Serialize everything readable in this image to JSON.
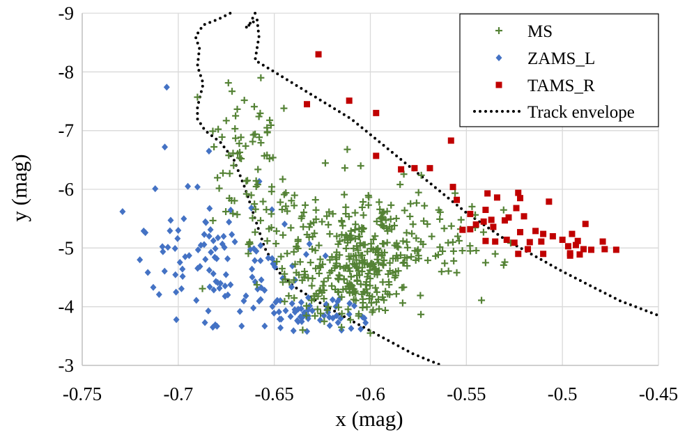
{
  "chart_data": {
    "type": "scatter",
    "xlabel": "x (mag)",
    "ylabel": "y (mag)",
    "xlim": [
      -0.75,
      -0.45
    ],
    "ylim": [
      -3,
      -9
    ],
    "x_ticks": [
      -0.75,
      -0.7,
      -0.65,
      -0.6,
      -0.55,
      -0.5,
      -0.45
    ],
    "x_tick_labels": [
      "-0.75",
      "-0.7",
      "-0.65",
      "-0.6",
      "-0.55",
      "-0.5",
      "-0.45"
    ],
    "y_ticks": [
      -3,
      -4,
      -5,
      -6,
      -7,
      -8,
      -9
    ],
    "y_tick_labels": [
      "-3",
      "-4",
      "-5",
      "-6",
      "-7",
      "-8",
      "-9"
    ],
    "grid": true,
    "legend_position": "top-right",
    "colors": {
      "MS": "#548235",
      "ZAMS_L": "#4472C4",
      "TAMS_R": "#C00000",
      "envelope": "#000000",
      "grid": "#D9D9D9",
      "axis": "#000000"
    },
    "series": [
      {
        "name": "MS",
        "marker": "plus",
        "generated": {
          "count": 480,
          "seed": 7,
          "clusters": [
            {
              "weight": 0.55,
              "cx": -0.605,
              "cy": -4.6,
              "sx": 0.018,
              "sy": 0.45,
              "corr": -0.35
            },
            {
              "weight": 0.25,
              "cx": -0.625,
              "cy": -5.4,
              "sx": 0.022,
              "sy": 0.45,
              "corr": -0.2
            },
            {
              "weight": 0.1,
              "cx": -0.665,
              "cy": -6.5,
              "sx": 0.01,
              "sy": 0.5,
              "corr": 0.0
            },
            {
              "weight": 0.1,
              "cx": -0.565,
              "cy": -5.2,
              "sx": 0.02,
              "sy": 0.35,
              "corr": 0.0
            }
          ],
          "bounds": {
            "xmin": -0.69,
            "xmax": -0.525,
            "ymin": -3.55,
            "ymax": -7.9
          }
        },
        "values": [
          {
            "x": -0.69,
            "y": -7.57
          },
          {
            "x": -0.672,
            "y": -7.67
          },
          {
            "x": -0.657,
            "y": -7.9
          },
          {
            "x": -0.645,
            "y": -7.38
          },
          {
            "x": -0.658,
            "y": -7.24
          },
          {
            "x": -0.675,
            "y": -7.17
          },
          {
            "x": -0.682,
            "y": -6.99
          },
          {
            "x": -0.66,
            "y": -6.94
          },
          {
            "x": -0.668,
            "y": -6.63
          },
          {
            "x": -0.664,
            "y": -6.15
          },
          {
            "x": -0.662,
            "y": -5.9
          },
          {
            "x": -0.612,
            "y": -6.68
          },
          {
            "x": -0.605,
            "y": -6.4
          },
          {
            "x": -0.548,
            "y": -4.95
          },
          {
            "x": -0.535,
            "y": -4.9
          },
          {
            "x": -0.53,
            "y": -4.76
          },
          {
            "x": -0.54,
            "y": -4.75
          },
          {
            "x": -0.555,
            "y": -4.58
          },
          {
            "x": -0.6,
            "y": -3.55
          },
          {
            "x": -0.615,
            "y": -3.65
          }
        ]
      },
      {
        "name": "ZAMS_L",
        "marker": "diamond",
        "generated": {
          "count": 150,
          "seed": 11,
          "clusters": [
            {
              "weight": 0.45,
              "cx": -0.66,
              "cy": -4.4,
              "sx": 0.025,
              "sy": 0.45,
              "corr": 0.0
            },
            {
              "weight": 0.3,
              "cx": -0.69,
              "cy": -4.9,
              "sx": 0.02,
              "sy": 0.5,
              "corr": 0.0
            },
            {
              "weight": 0.25,
              "cx": -0.63,
              "cy": -3.85,
              "sx": 0.018,
              "sy": 0.18,
              "corr": 0.0
            }
          ],
          "bounds": {
            "xmin": -0.72,
            "xmax": -0.6,
            "ymin": -3.6,
            "ymax": -6.8
          }
        },
        "values": [
          {
            "x": -0.729,
            "y": -5.62
          },
          {
            "x": -0.718,
            "y": -5.29
          },
          {
            "x": -0.72,
            "y": -4.8
          },
          {
            "x": -0.713,
            "y": -4.33
          },
          {
            "x": -0.712,
            "y": -6.01
          },
          {
            "x": -0.707,
            "y": -6.72
          },
          {
            "x": -0.706,
            "y": -7.74
          },
          {
            "x": -0.701,
            "y": -3.78
          },
          {
            "x": -0.695,
            "y": -6.05
          },
          {
            "x": -0.69,
            "y": -6.04
          },
          {
            "x": -0.684,
            "y": -6.65
          },
          {
            "x": -0.682,
            "y": -3.65
          },
          {
            "x": -0.667,
            "y": -3.67
          },
          {
            "x": -0.655,
            "y": -3.67
          },
          {
            "x": -0.64,
            "y": -3.59
          },
          {
            "x": -0.633,
            "y": -3.58
          },
          {
            "x": -0.615,
            "y": -3.6
          },
          {
            "x": -0.61,
            "y": -3.63
          },
          {
            "x": -0.605,
            "y": -3.62
          },
          {
            "x": -0.7,
            "y": -5.3
          }
        ]
      },
      {
        "name": "TAMS_R",
        "marker": "square",
        "values": [
          {
            "x": -0.627,
            "y": -8.3
          },
          {
            "x": -0.611,
            "y": -7.51
          },
          {
            "x": -0.633,
            "y": -7.45
          },
          {
            "x": -0.597,
            "y": -7.3
          },
          {
            "x": -0.558,
            "y": -6.83
          },
          {
            "x": -0.597,
            "y": -6.57
          },
          {
            "x": -0.584,
            "y": -6.34
          },
          {
            "x": -0.577,
            "y": -6.36
          },
          {
            "x": -0.569,
            "y": -6.36
          },
          {
            "x": -0.557,
            "y": -6.04
          },
          {
            "x": -0.539,
            "y": -5.93
          },
          {
            "x": -0.523,
            "y": -5.94
          },
          {
            "x": -0.534,
            "y": -5.86
          },
          {
            "x": -0.522,
            "y": -5.85
          },
          {
            "x": -0.555,
            "y": -5.82
          },
          {
            "x": -0.507,
            "y": -5.79
          },
          {
            "x": -0.524,
            "y": -5.68
          },
          {
            "x": -0.54,
            "y": -5.65
          },
          {
            "x": -0.548,
            "y": -5.58
          },
          {
            "x": -0.528,
            "y": -5.52
          },
          {
            "x": -0.52,
            "y": -5.54
          },
          {
            "x": -0.537,
            "y": -5.48
          },
          {
            "x": -0.541,
            "y": -5.45
          },
          {
            "x": -0.53,
            "y": -5.47
          },
          {
            "x": -0.545,
            "y": -5.4
          },
          {
            "x": -0.488,
            "y": -5.41
          },
          {
            "x": -0.536,
            "y": -5.36
          },
          {
            "x": -0.548,
            "y": -5.32
          },
          {
            "x": -0.552,
            "y": -5.31
          },
          {
            "x": -0.514,
            "y": -5.29
          },
          {
            "x": -0.51,
            "y": -5.24
          },
          {
            "x": -0.522,
            "y": -5.27
          },
          {
            "x": -0.495,
            "y": -5.24
          },
          {
            "x": -0.505,
            "y": -5.2
          },
          {
            "x": -0.5,
            "y": -5.14
          },
          {
            "x": -0.511,
            "y": -5.11
          },
          {
            "x": -0.517,
            "y": -5.1
          },
          {
            "x": -0.529,
            "y": -5.14
          },
          {
            "x": -0.535,
            "y": -5.11
          },
          {
            "x": -0.54,
            "y": -5.12
          },
          {
            "x": -0.525,
            "y": -5.09
          },
          {
            "x": -0.492,
            "y": -5.12
          },
          {
            "x": -0.497,
            "y": -5.03
          },
          {
            "x": -0.493,
            "y": -5.05
          },
          {
            "x": -0.489,
            "y": -4.98
          },
          {
            "x": -0.479,
            "y": -5.11
          },
          {
            "x": -0.478,
            "y": -4.98
          },
          {
            "x": -0.485,
            "y": -4.97
          },
          {
            "x": -0.472,
            "y": -4.97
          },
          {
            "x": -0.496,
            "y": -4.91
          },
          {
            "x": -0.491,
            "y": -4.89
          },
          {
            "x": -0.496,
            "y": -4.87
          },
          {
            "x": -0.51,
            "y": -4.9
          },
          {
            "x": -0.523,
            "y": -4.9
          },
          {
            "x": -0.518,
            "y": -4.98
          }
        ]
      }
    ],
    "envelope": {
      "name": "Track envelope",
      "inner_path": [
        {
          "x": -0.673,
          "y": -9.0
        },
        {
          "x": -0.679,
          "y": -8.9
        },
        {
          "x": -0.687,
          "y": -8.8
        },
        {
          "x": -0.691,
          "y": -8.6
        },
        {
          "x": -0.689,
          "y": -8.4
        },
        {
          "x": -0.69,
          "y": -8.1
        },
        {
          "x": -0.687,
          "y": -7.8
        },
        {
          "x": -0.69,
          "y": -7.4
        },
        {
          "x": -0.69,
          "y": -7.2
        },
        {
          "x": -0.686,
          "y": -7.0
        },
        {
          "x": -0.678,
          "y": -6.8
        },
        {
          "x": -0.671,
          "y": -6.5
        },
        {
          "x": -0.665,
          "y": -6.0
        },
        {
          "x": -0.66,
          "y": -5.5
        },
        {
          "x": -0.655,
          "y": -5.0
        },
        {
          "x": -0.648,
          "y": -4.6
        },
        {
          "x": -0.64,
          "y": -4.35
        },
        {
          "x": -0.628,
          "y": -4.1
        },
        {
          "x": -0.612,
          "y": -3.8
        },
        {
          "x": -0.595,
          "y": -3.5
        },
        {
          "x": -0.578,
          "y": -3.2
        },
        {
          "x": -0.563,
          "y": -3.0
        }
      ],
      "outer_path": [
        {
          "x": -0.66,
          "y": -9.0
        },
        {
          "x": -0.663,
          "y": -8.8
        },
        {
          "x": -0.665,
          "y": -8.75
        },
        {
          "x": -0.663,
          "y": -8.8
        },
        {
          "x": -0.659,
          "y": -8.9
        },
        {
          "x": -0.658,
          "y": -8.6
        },
        {
          "x": -0.66,
          "y": -8.2
        },
        {
          "x": -0.65,
          "y": -8.0
        },
        {
          "x": -0.64,
          "y": -7.8
        },
        {
          "x": -0.625,
          "y": -7.5
        },
        {
          "x": -0.61,
          "y": -7.2
        },
        {
          "x": -0.595,
          "y": -6.8
        },
        {
          "x": -0.58,
          "y": -6.4
        },
        {
          "x": -0.565,
          "y": -6.0
        },
        {
          "x": -0.55,
          "y": -5.6
        },
        {
          "x": -0.53,
          "y": -5.15
        },
        {
          "x": -0.5,
          "y": -4.6
        },
        {
          "x": -0.47,
          "y": -4.1
        },
        {
          "x": -0.45,
          "y": -3.85
        }
      ]
    }
  }
}
